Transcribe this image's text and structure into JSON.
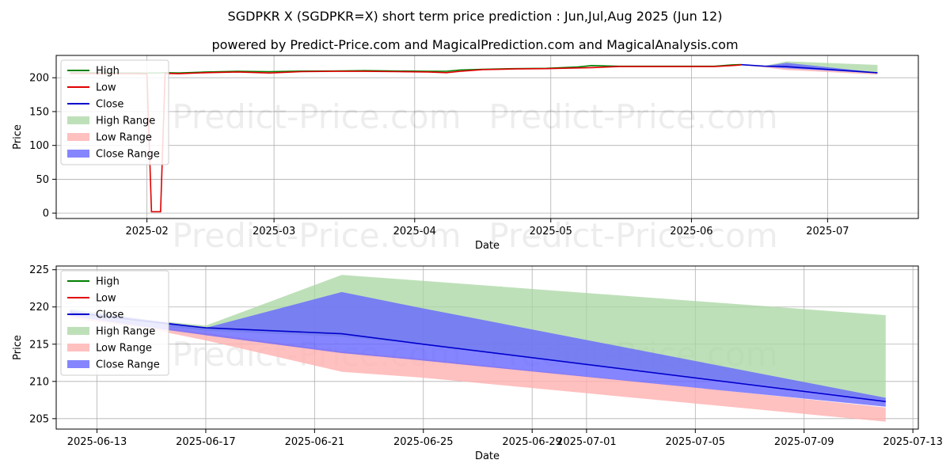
{
  "title": "SGDPKR X (SGDPKR=X) short term price prediction : Jun,Jul,Aug 2025 (Jun 12)",
  "subtitle": "powered by Predict-Price.com and MagicalPrediction.com and MagicalAnalysis.com",
  "watermark": "Predict-Price.com",
  "colors": {
    "high": "#008000",
    "low": "#e00000",
    "close": "#0000cc",
    "high_range": "#a8d5a2",
    "low_range": "#ffb0b0",
    "close_range": "#6666ff"
  },
  "legend": [
    "High",
    "Low",
    "Close",
    "High Range",
    "Low Range",
    "Close Range"
  ],
  "chart_data": [
    {
      "type": "line",
      "name": "history-and-forecast",
      "xlabel": "Date",
      "ylabel": "Price",
      "xlim": [
        "2025-01-12",
        "2025-07-21"
      ],
      "ylim": [
        -8,
        233
      ],
      "x_ticks": [
        "2025-02",
        "2025-03",
        "2025-04",
        "2025-05",
        "2025-06",
        "2025-07"
      ],
      "y_ticks": [
        0,
        50,
        100,
        150,
        200
      ],
      "history": {
        "dates": [
          "2025-01-15",
          "2025-01-22",
          "2025-01-29",
          "2025-02-01",
          "2025-02-02",
          "2025-02-03",
          "2025-02-04",
          "2025-02-05",
          "2025-02-08",
          "2025-02-14",
          "2025-02-21",
          "2025-02-28",
          "2025-03-07",
          "2025-03-14",
          "2025-03-21",
          "2025-03-28",
          "2025-04-04",
          "2025-04-08",
          "2025-04-11",
          "2025-04-16",
          "2025-04-23",
          "2025-04-30",
          "2025-05-07",
          "2025-05-10",
          "2025-05-16",
          "2025-05-23",
          "2025-05-30",
          "2025-06-06",
          "2025-06-10",
          "2025-06-12"
        ],
        "high": [
          207.5,
          207.3,
          207.0,
          206.9,
          207.0,
          207.1,
          207.2,
          207.5,
          207.0,
          208.5,
          209.5,
          209.0,
          209.8,
          210.0,
          210.5,
          210.0,
          209.5,
          209.6,
          211.5,
          212.5,
          213.5,
          214.0,
          216.0,
          218.0,
          217.0,
          217.0,
          217.0,
          217.0,
          219.0,
          219.5
        ],
        "low": [
          206.5,
          206.0,
          206.0,
          205.5,
          2.0,
          2.0,
          2.0,
          206.5,
          206.0,
          207.5,
          208.5,
          207.0,
          209.0,
          209.5,
          209.5,
          209.0,
          208.5,
          207.5,
          209.5,
          212.0,
          213.0,
          213.5,
          214.5,
          215.0,
          216.5,
          216.5,
          216.5,
          216.5,
          218.0,
          219.0
        ],
        "close": [
          207.0,
          206.8,
          206.5,
          206.0,
          206.5,
          206.8,
          207.0,
          207.0,
          206.5,
          208.0,
          209.0,
          208.5,
          209.5,
          210.0,
          210.0,
          209.5,
          209.0,
          208.5,
          210.5,
          212.5,
          213.5,
          214.0,
          215.5,
          216.0,
          217.0,
          217.0,
          217.0,
          217.0,
          218.5,
          219.3
        ]
      },
      "forecast": {
        "dates": [
          "2025-06-12",
          "2025-06-17",
          "2025-06-22",
          "2025-06-25",
          "2025-07-12"
        ],
        "close": [
          219.3,
          217.2,
          216.4,
          215.0,
          207.3
        ],
        "high_range_upper": [
          219.8,
          217.5,
          224.3,
          223.5,
          218.9
        ],
        "high_range_lower": [
          219.0,
          216.8,
          216.0,
          215.0,
          207.5
        ],
        "low_range_upper": [
          219.0,
          216.5,
          214.0,
          213.0,
          206.5
        ],
        "low_range_lower": [
          218.5,
          215.5,
          211.3,
          210.5,
          204.6
        ],
        "close_range_upper": [
          219.6,
          217.2,
          222.0,
          219.8,
          207.8
        ],
        "close_range_lower": [
          218.8,
          216.2,
          213.8,
          212.8,
          206.6
        ]
      }
    },
    {
      "type": "line",
      "name": "forecast-zoom",
      "xlabel": "Date",
      "ylabel": "Price",
      "xlim": [
        "2025-06-11.5",
        "2025-07-13.2"
      ],
      "ylim": [
        203.6,
        225.5
      ],
      "x_ticks": [
        "2025-06-13",
        "2025-06-17",
        "2025-06-21",
        "2025-06-25",
        "2025-06-29",
        "2025-07-01",
        "2025-07-05",
        "2025-07-09",
        "2025-07-13"
      ],
      "y_ticks": [
        205,
        210,
        215,
        220,
        225
      ],
      "dates": [
        "2025-06-12",
        "2025-06-15",
        "2025-06-17",
        "2025-06-22",
        "2025-06-25",
        "2025-07-12"
      ],
      "close": [
        219.3,
        218.0,
        217.2,
        216.4,
        215.0,
        207.3
      ],
      "high_range_upper": [
        219.8,
        218.2,
        217.5,
        224.3,
        223.5,
        218.9
      ],
      "high_range_lower": [
        219.0,
        217.5,
        216.8,
        216.0,
        215.0,
        207.5
      ],
      "low_range_upper": [
        219.0,
        217.5,
        216.5,
        214.0,
        213.0,
        206.5
      ],
      "low_range_lower": [
        218.5,
        217.0,
        215.5,
        211.3,
        210.5,
        204.6
      ],
      "close_range_upper": [
        219.6,
        218.2,
        217.2,
        222.0,
        219.8,
        207.8
      ],
      "close_range_lower": [
        218.8,
        217.2,
        216.2,
        213.8,
        212.8,
        206.6
      ]
    }
  ]
}
